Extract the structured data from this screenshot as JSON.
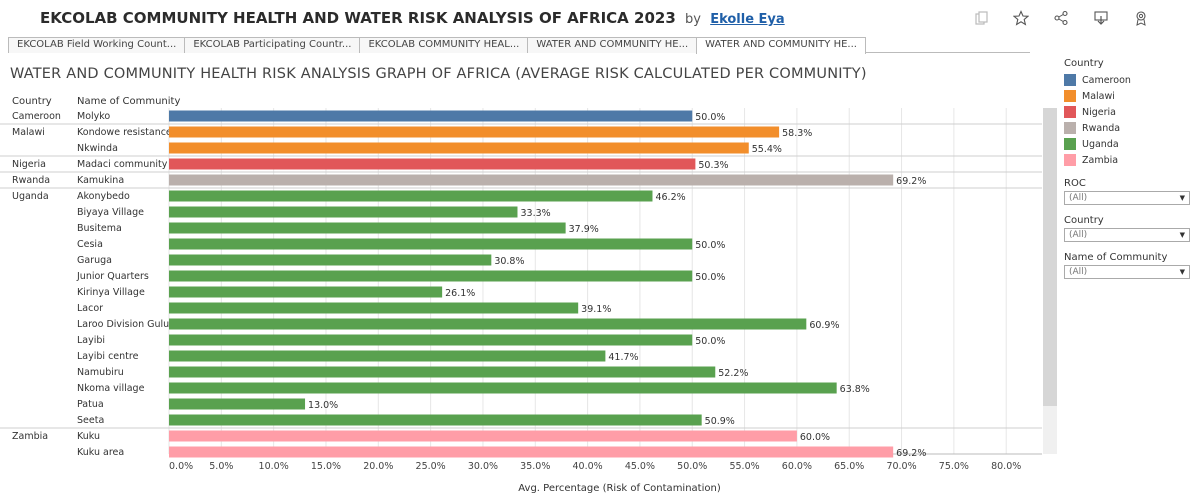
{
  "header": {
    "title": "EKCOLAB COMMUNITY HEALTH AND WATER RISK ANALYSIS OF AFRICA 2023",
    "by": "by",
    "author": "Ekolle Eya"
  },
  "tabs": [
    {
      "label": "EKCOLAB Field Working Count..."
    },
    {
      "label": "EKCOLAB Participating Countr..."
    },
    {
      "label": "EKCOLAB COMMUNITY HEAL..."
    },
    {
      "label": "WATER AND COMMUNITY HE..."
    },
    {
      "label": "WATER AND COMMUNITY HE..."
    }
  ],
  "sheet_title": "WATER AND COMMUNITY HEALTH RISK ANALYSIS  GRAPH OF AFRICA (AVERAGE RISK CALCULATED PER COMMUNITY)",
  "columns": {
    "country": "Country",
    "community": "Name of Community"
  },
  "legend": {
    "title": "Country",
    "items": [
      {
        "name": "Cameroon",
        "color": "#4e79a7"
      },
      {
        "name": "Malawi",
        "color": "#f28e2b"
      },
      {
        "name": "Nigeria",
        "color": "#e15759"
      },
      {
        "name": "Rwanda",
        "color": "#bab0ac"
      },
      {
        "name": "Uganda",
        "color": "#59a14f"
      },
      {
        "name": "Zambia",
        "color": "#ff9da7"
      }
    ]
  },
  "filters": [
    {
      "label": "ROC",
      "value": "(All)"
    },
    {
      "label": "Country",
      "value": "(All)"
    },
    {
      "label": "Name of Community",
      "value": "(All)"
    }
  ],
  "chart_data": {
    "type": "bar",
    "orientation": "horizontal",
    "xlabel": "Avg. Percentage (Risk of Contamination)",
    "xlim": [
      0,
      80
    ],
    "xticks": [
      "0.0%",
      "5.0%",
      "10.0%",
      "15.0%",
      "20.0%",
      "25.0%",
      "30.0%",
      "35.0%",
      "40.0%",
      "45.0%",
      "50.0%",
      "55.0%",
      "60.0%",
      "65.0%",
      "70.0%",
      "75.0%",
      "80.0%"
    ],
    "grid": true,
    "legend_position": "right",
    "series_by": "Country",
    "rows": [
      {
        "country": "Cameroon",
        "community": "Molyko",
        "value": 50.0,
        "label": "50.0%"
      },
      {
        "country": "Malawi",
        "community": "Kondowe resistance",
        "value": 58.3,
        "label": "58.3%"
      },
      {
        "country": "Malawi",
        "community": "Nkwinda",
        "value": 55.4,
        "label": "55.4%"
      },
      {
        "country": "Nigeria",
        "community": "Madaci community",
        "value": 50.3,
        "label": "50.3%"
      },
      {
        "country": "Rwanda",
        "community": "Kamukina",
        "value": 69.2,
        "label": "69.2%"
      },
      {
        "country": "Uganda",
        "community": "Akonybedo",
        "value": 46.2,
        "label": "46.2%"
      },
      {
        "country": "Uganda",
        "community": "Biyaya Village",
        "value": 33.3,
        "label": "33.3%"
      },
      {
        "country": "Uganda",
        "community": "Busitema",
        "value": 37.9,
        "label": "37.9%"
      },
      {
        "country": "Uganda",
        "community": "Cesia",
        "value": 50.0,
        "label": "50.0%"
      },
      {
        "country": "Uganda",
        "community": "Garuga",
        "value": 30.8,
        "label": "30.8%"
      },
      {
        "country": "Uganda",
        "community": "Junior Quarters",
        "value": 50.0,
        "label": "50.0%"
      },
      {
        "country": "Uganda",
        "community": "Kirinya Village",
        "value": 26.1,
        "label": "26.1%"
      },
      {
        "country": "Uganda",
        "community": "Lacor",
        "value": 39.1,
        "label": "39.1%"
      },
      {
        "country": "Uganda",
        "community": "Laroo Division Gulu",
        "value": 60.9,
        "label": "60.9%"
      },
      {
        "country": "Uganda",
        "community": "Layibi",
        "value": 50.0,
        "label": "50.0%"
      },
      {
        "country": "Uganda",
        "community": "Layibi centre",
        "value": 41.7,
        "label": "41.7%"
      },
      {
        "country": "Uganda",
        "community": "Namubiru",
        "value": 52.2,
        "label": "52.2%"
      },
      {
        "country": "Uganda",
        "community": "Nkoma village",
        "value": 63.8,
        "label": "63.8%"
      },
      {
        "country": "Uganda",
        "community": "Patua",
        "value": 13.0,
        "label": "13.0%"
      },
      {
        "country": "Uganda",
        "community": "Seeta",
        "value": 50.9,
        "label": "50.9%"
      },
      {
        "country": "Zambia",
        "community": "Kuku",
        "value": 60.0,
        "label": "60.0%"
      },
      {
        "country": "Zambia",
        "community": "Kuku area",
        "value": 69.2,
        "label": "69.2%"
      }
    ]
  }
}
